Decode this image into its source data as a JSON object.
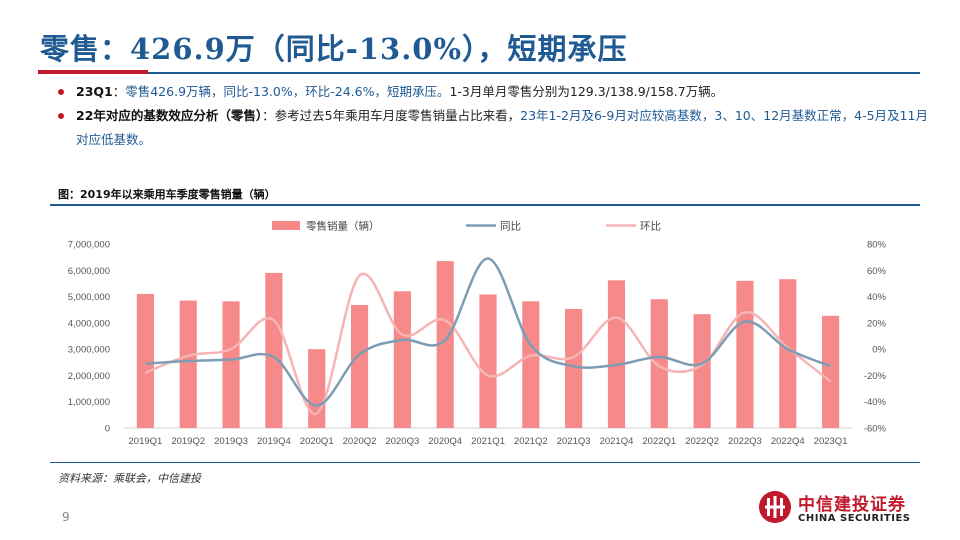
{
  "title": "零售：426.9万（同比-13.0%），短期承压",
  "bullets": [
    {
      "lead": "23Q1",
      "sep": "：",
      "highlight": "零售426.9万辆，同比-13.0%，环比-24.6%，短期承压。",
      "plain": "1-3月单月零售分别为129.3/138.9/158.7万辆。"
    },
    {
      "lead": "22年对应的基数效应分析（零售）",
      "sep": "：",
      "plain": "参考过去5年乘用车月度零售销量占比来看，",
      "highlight": "23年1-2月及6-9月对应较高基数，3、10、12月基数正常，4-5月及11月对应低基数。"
    }
  ],
  "figure_caption": "图：2019年以来乘用车季度零售销量（辆）",
  "source": "资料来源：乘联会，中信建投",
  "page_number": "9",
  "logo": {
    "cn": "中信建投证券",
    "en": "CHINA SECURITIES"
  },
  "colors": {
    "bar": "#f68a8a",
    "yoy": "#7d9db5",
    "qoq": "#f7b4b4",
    "brand": "#1f5a93",
    "accent": "#c0192b"
  },
  "chart_data": {
    "type": "bar",
    "categories": [
      "2019Q1",
      "2019Q2",
      "2019Q3",
      "2019Q4",
      "2020Q1",
      "2020Q2",
      "2020Q3",
      "2020Q4",
      "2021Q1",
      "2021Q2",
      "2021Q3",
      "2021Q4",
      "2022Q1",
      "2022Q2",
      "2022Q3",
      "2022Q4",
      "2023Q1"
    ],
    "series": [
      {
        "name": "零售销量（辆）",
        "type": "bar",
        "axis": "left",
        "values": [
          5100000,
          4850000,
          4820000,
          5900000,
          3000000,
          4680000,
          5200000,
          6350000,
          5080000,
          4820000,
          4530000,
          5620000,
          4900000,
          4330000,
          5600000,
          5660000,
          4269000
        ]
      },
      {
        "name": "同比",
        "type": "line",
        "axis": "right",
        "values": [
          -11,
          -9,
          -8,
          -6,
          -43,
          -4,
          7,
          7,
          69,
          3,
          -13,
          -12,
          -6,
          -11,
          21,
          0,
          -13
        ]
      },
      {
        "name": "环比",
        "type": "line",
        "axis": "right",
        "values": [
          -18,
          -5,
          0,
          22,
          -49,
          56,
          11,
          22,
          -20,
          -5,
          -6,
          24,
          -13,
          -12,
          28,
          1,
          -24.6
        ]
      }
    ],
    "left_axis": {
      "ylim": [
        0,
        7000000
      ],
      "ticks": [
        "0",
        "1,000,000",
        "2,000,000",
        "3,000,000",
        "4,000,000",
        "5,000,000",
        "6,000,000",
        "7,000,000"
      ]
    },
    "right_axis": {
      "ylim": [
        -60,
        80
      ],
      "ticks": [
        "-60%",
        "-40%",
        "-20%",
        "0%",
        "20%",
        "40%",
        "60%",
        "80%"
      ]
    },
    "legend": {
      "placement": "top",
      "items": [
        "零售销量（辆）",
        "同比",
        "环比"
      ]
    },
    "grid": false
  }
}
